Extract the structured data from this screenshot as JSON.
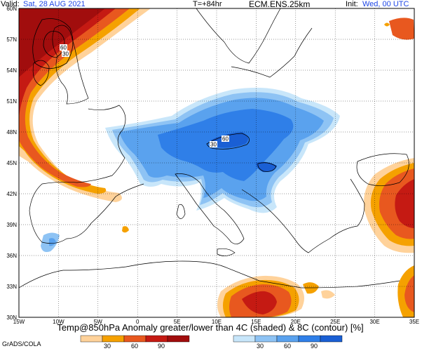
{
  "header": {
    "valid_label": "Valid:",
    "valid_value": "Sat, 28 AUG 2021",
    "lead": "T=+84hr",
    "model": "ECM.ENS.25km",
    "init_label": "Init:",
    "init_value": "Wed, 00 UTC"
  },
  "map": {
    "lat_labels": [
      "60N",
      "57N",
      "54N",
      "51N",
      "48N",
      "45N",
      "42N",
      "39N",
      "36N",
      "33N",
      "30N"
    ],
    "lon_labels": [
      "15W",
      "10W",
      "5W",
      "0",
      "5E",
      "10E",
      "15E",
      "20E",
      "25E",
      "30E",
      "35E"
    ],
    "contour_labels": [
      "60",
      "30",
      "60",
      "30"
    ],
    "caption": "Temp@850hPa Anomaly greater/lower than 4C (shaded) & 8C (contour) [%]",
    "credit": "GrADS/COLA"
  },
  "colorbars": {
    "warm": {
      "labels": [
        "30",
        "60",
        "90"
      ],
      "colors": [
        "#ffd29a",
        "#f5a100",
        "#e8581f",
        "#c51a13",
        "#a10d0d"
      ]
    },
    "cold": {
      "labels": [
        "30",
        "60",
        "90"
      ],
      "colors": [
        "#c8e6fa",
        "#8ec3f4",
        "#5aa2ee",
        "#2f7fe8",
        "#1a5fd4"
      ]
    }
  },
  "colors": {
    "warm_light": "#ffd29a",
    "warm_orange": "#f5a100",
    "warm_red": "#e8581f",
    "warm_dark": "#c51a13",
    "cold_light": "#8ec3f4",
    "cold_mid": "#5aa2ee",
    "cold_dark": "#2f7fe8",
    "grid": "#000000",
    "coast": "#000000"
  }
}
